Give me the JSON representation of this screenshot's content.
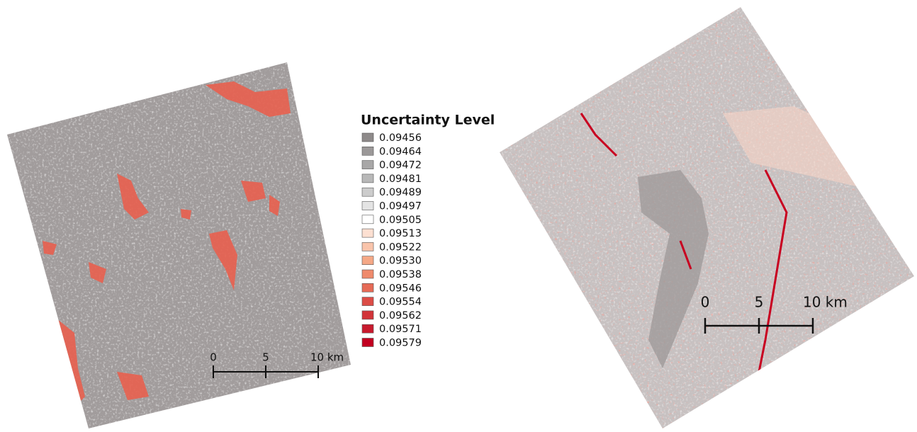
{
  "legend": {
    "title": "Uncertainty Level",
    "items": [
      {
        "label": "0.09456",
        "color": "#8e8a8a"
      },
      {
        "label": "0.09464",
        "color": "#9b9898"
      },
      {
        "label": "0.09472",
        "color": "#a8a7a7"
      },
      {
        "label": "0.09481",
        "color": "#b8b8b8"
      },
      {
        "label": "0.09489",
        "color": "#cccccc"
      },
      {
        "label": "0.09497",
        "color": "#e4e4e4"
      },
      {
        "label": "0.09505",
        "color": "#ffffff"
      },
      {
        "label": "0.09513",
        "color": "#fde0d2"
      },
      {
        "label": "0.09522",
        "color": "#f9c4ab"
      },
      {
        "label": "0.09530",
        "color": "#f5a886"
      },
      {
        "label": "0.09538",
        "color": "#ef8a6c"
      },
      {
        "label": "0.09546",
        "color": "#e66a56"
      },
      {
        "label": "0.09554",
        "color": "#dc4c46"
      },
      {
        "label": "0.09562",
        "color": "#d23439"
      },
      {
        "label": "0.09571",
        "color": "#c81a2d"
      },
      {
        "label": "0.09579",
        "color": "#c20020"
      }
    ]
  },
  "scale_bars": [
    {
      "labels": [
        "0",
        "5",
        "10 km"
      ]
    },
    {
      "labels": [
        "0",
        "5",
        "10 km"
      ]
    }
  ]
}
